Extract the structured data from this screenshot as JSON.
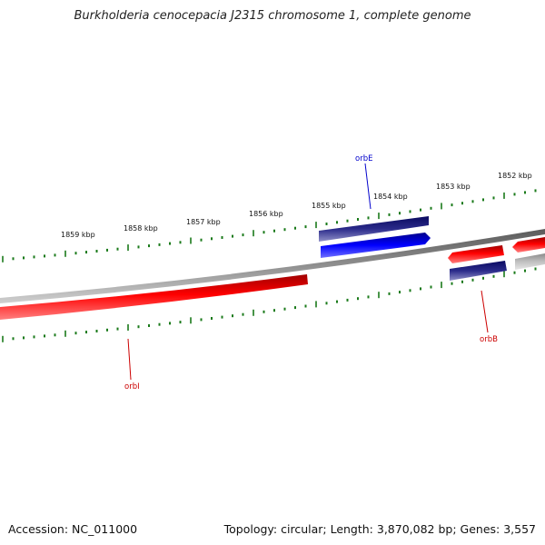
{
  "title": "Burkholderia cenocepacia J2315 chromosome 1, complete genome",
  "footer": {
    "accession": "Accession: NC_011000",
    "summary": "Topology: circular; Length: 3,870,082 bp; Genes: 3,557"
  },
  "scale": {
    "labels": [
      "1859 kbp",
      "1858 kbp",
      "1857 kbp",
      "1856 kbp",
      "1855 kbp",
      "1854 kbp",
      "1853 kbp",
      "1852 kbp"
    ]
  },
  "genes": {
    "orbE": {
      "label": "orbE",
      "color": "#0000cc"
    },
    "orbI": {
      "label": "orbI",
      "color": "#cc0000"
    },
    "orbB": {
      "label": "orbB",
      "color": "#cc0000"
    }
  },
  "colors": {
    "backbone": "#808080",
    "tick": "#1a7a1a",
    "red_gene": "#ff0000",
    "blue_gene": "#0000ff",
    "navy_gene": "#1a1a7a",
    "grey_gene": "#b0b0b0"
  }
}
